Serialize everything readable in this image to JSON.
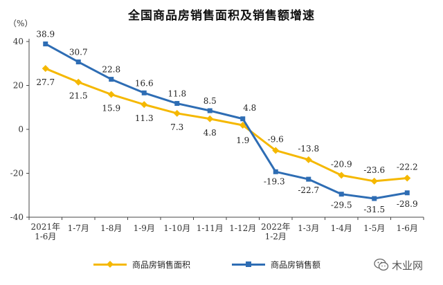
{
  "chart_data": {
    "type": "line",
    "title": "全国商品房销售面积及销售额增速",
    "unit": "（%）",
    "y_ticks": [
      "40",
      "20",
      "0",
      "-20",
      "-40"
    ],
    "ylim": [
      -40,
      40
    ],
    "categories": [
      [
        "2021年",
        "1-6月"
      ],
      [
        "1-7月"
      ],
      [
        "1-8月"
      ],
      [
        "1-9月"
      ],
      [
        "1-10月"
      ],
      [
        "1-11月"
      ],
      [
        "1-12月"
      ],
      [
        "2022年",
        "1-2月"
      ],
      [
        "1-3月"
      ],
      [
        "1-4月"
      ],
      [
        "1-5月"
      ],
      [
        "1-6月"
      ]
    ],
    "series": [
      {
        "name": "商品房销售面积",
        "color": "#f5b800",
        "marker": "diamond",
        "values": [
          27.7,
          21.5,
          15.9,
          11.3,
          7.3,
          4.8,
          1.9,
          -9.6,
          -13.8,
          -20.9,
          -23.6,
          -22.2
        ],
        "labels": [
          "27.7",
          "21.5",
          "15.9",
          "11.3",
          "7.3",
          "4.8",
          "1.9",
          "-9.6",
          "-13.8",
          "-20.9",
          "-23.6",
          "-22.2"
        ]
      },
      {
        "name": "商品房销售额",
        "color": "#2e6db4",
        "marker": "square",
        "values": [
          38.9,
          30.7,
          22.8,
          16.6,
          11.8,
          8.5,
          4.8,
          -19.3,
          -22.7,
          -29.5,
          -31.5,
          -28.9
        ],
        "labels": [
          "38.9",
          "30.7",
          "22.8",
          "16.6",
          "11.8",
          "8.5",
          "4.8",
          "-19.3",
          "-22.7",
          "-29.5",
          "-31.5",
          "-28.9"
        ]
      }
    ],
    "legend_position": "bottom"
  },
  "watermark": {
    "text": "木业网",
    "icon": "wechat-icon"
  }
}
